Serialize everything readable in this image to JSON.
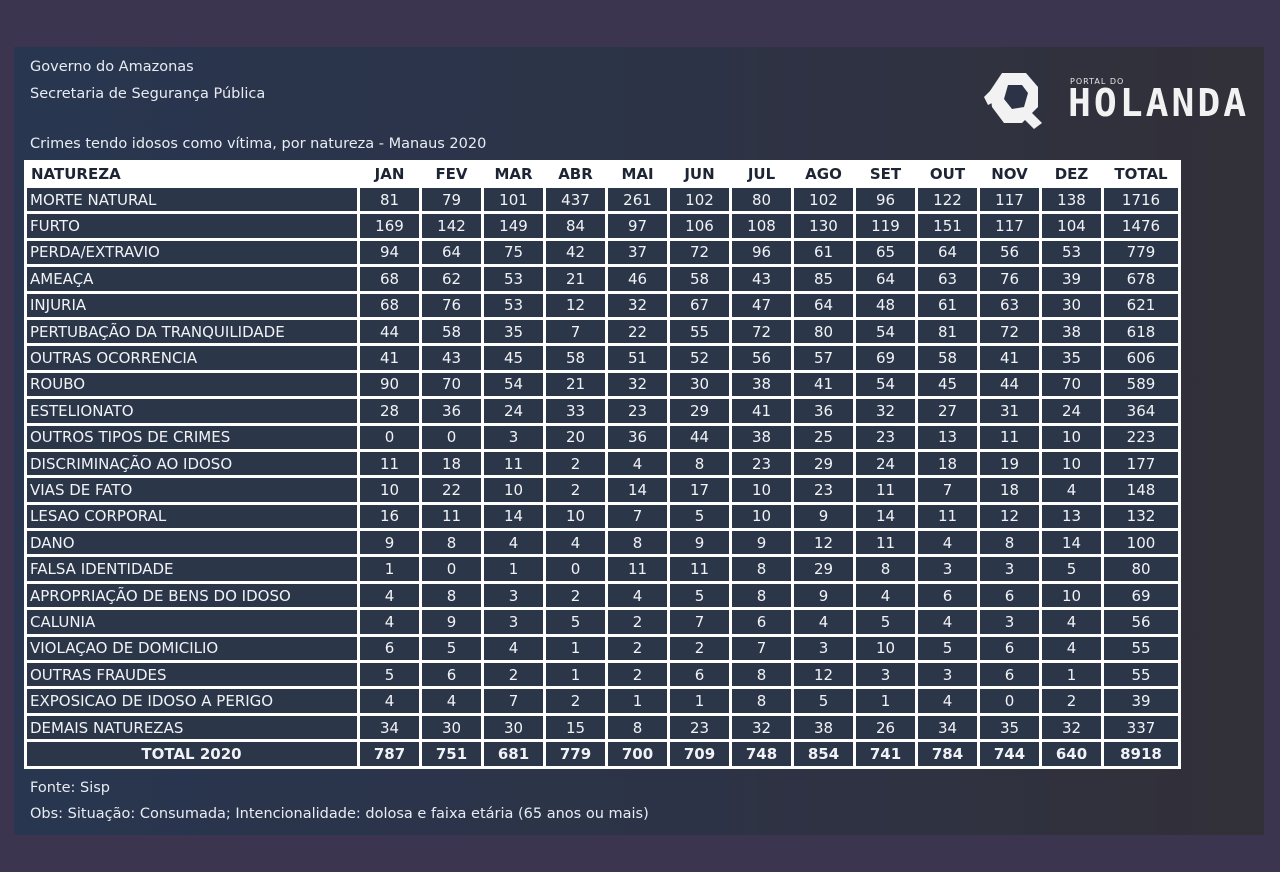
{
  "header": {
    "line1": "Governo do Amazonas",
    "line2": "Secretaria de Segurança Pública",
    "subtitle": "Crimes tendo idosos como vítima, por natureza - Manaus 2020"
  },
  "logo": {
    "small": "PORTAL DO",
    "big": "HOLANDA"
  },
  "table": {
    "columns": [
      "NATUREZA",
      "JAN",
      "FEV",
      "MAR",
      "ABR",
      "MAI",
      "JUN",
      "JUL",
      "AGO",
      "SET",
      "OUT",
      "NOV",
      "DEZ",
      "TOTAL"
    ],
    "rows": [
      [
        "MORTE NATURAL",
        "81",
        "79",
        "101",
        "437",
        "261",
        "102",
        "80",
        "102",
        "96",
        "122",
        "117",
        "138",
        "1716"
      ],
      [
        "FURTO",
        "169",
        "142",
        "149",
        "84",
        "97",
        "106",
        "108",
        "130",
        "119",
        "151",
        "117",
        "104",
        "1476"
      ],
      [
        "PERDA/EXTRAVIO",
        "94",
        "64",
        "75",
        "42",
        "37",
        "72",
        "96",
        "61",
        "65",
        "64",
        "56",
        "53",
        "779"
      ],
      [
        "AMEAÇA",
        "68",
        "62",
        "53",
        "21",
        "46",
        "58",
        "43",
        "85",
        "64",
        "63",
        "76",
        "39",
        "678"
      ],
      [
        "INJURIA",
        "68",
        "76",
        "53",
        "12",
        "32",
        "67",
        "47",
        "64",
        "48",
        "61",
        "63",
        "30",
        "621"
      ],
      [
        "PERTUBAÇÃO DA TRANQUILIDADE",
        "44",
        "58",
        "35",
        "7",
        "22",
        "55",
        "72",
        "80",
        "54",
        "81",
        "72",
        "38",
        "618"
      ],
      [
        "OUTRAS OCORRENCIA",
        "41",
        "43",
        "45",
        "58",
        "51",
        "52",
        "56",
        "57",
        "69",
        "58",
        "41",
        "35",
        "606"
      ],
      [
        "ROUBO",
        "90",
        "70",
        "54",
        "21",
        "32",
        "30",
        "38",
        "41",
        "54",
        "45",
        "44",
        "70",
        "589"
      ],
      [
        "ESTELIONATO",
        "28",
        "36",
        "24",
        "33",
        "23",
        "29",
        "41",
        "36",
        "32",
        "27",
        "31",
        "24",
        "364"
      ],
      [
        "OUTROS TIPOS DE CRIMES",
        "0",
        "0",
        "3",
        "20",
        "36",
        "44",
        "38",
        "25",
        "23",
        "13",
        "11",
        "10",
        "223"
      ],
      [
        "DISCRIMINAÇÃO AO IDOSO",
        "11",
        "18",
        "11",
        "2",
        "4",
        "8",
        "23",
        "29",
        "24",
        "18",
        "19",
        "10",
        "177"
      ],
      [
        "VIAS DE FATO",
        "10",
        "22",
        "10",
        "2",
        "14",
        "17",
        "10",
        "23",
        "11",
        "7",
        "18",
        "4",
        "148"
      ],
      [
        "LESAO CORPORAL",
        "16",
        "11",
        "14",
        "10",
        "7",
        "5",
        "10",
        "9",
        "14",
        "11",
        "12",
        "13",
        "132"
      ],
      [
        "DANO",
        "9",
        "8",
        "4",
        "4",
        "8",
        "9",
        "9",
        "12",
        "11",
        "4",
        "8",
        "14",
        "100"
      ],
      [
        "FALSA IDENTIDADE",
        "1",
        "0",
        "1",
        "0",
        "11",
        "11",
        "8",
        "29",
        "8",
        "3",
        "3",
        "5",
        "80"
      ],
      [
        "APROPRIAÇÃO DE BENS DO IDOSO",
        "4",
        "8",
        "3",
        "2",
        "4",
        "5",
        "8",
        "9",
        "4",
        "6",
        "6",
        "10",
        "69"
      ],
      [
        "CALUNIA",
        "4",
        "9",
        "3",
        "5",
        "2",
        "7",
        "6",
        "4",
        "5",
        "4",
        "3",
        "4",
        "56"
      ],
      [
        "VIOLAÇAO DE DOMICILIO",
        "6",
        "5",
        "4",
        "1",
        "2",
        "2",
        "7",
        "3",
        "10",
        "5",
        "6",
        "4",
        "55"
      ],
      [
        "OUTRAS FRAUDES",
        "5",
        "6",
        "2",
        "1",
        "2",
        "6",
        "8",
        "12",
        "3",
        "3",
        "6",
        "1",
        "55"
      ],
      [
        "EXPOSICAO DE IDOSO A PERIGO",
        "4",
        "4",
        "7",
        "2",
        "1",
        "1",
        "8",
        "5",
        "1",
        "4",
        "0",
        "2",
        "39"
      ],
      [
        "DEMAIS NATUREZAS",
        "34",
        "30",
        "30",
        "15",
        "8",
        "23",
        "32",
        "38",
        "26",
        "34",
        "35",
        "32",
        "337"
      ]
    ],
    "total_row": [
      "TOTAL 2020",
      "787",
      "751",
      "681",
      "779",
      "700",
      "709",
      "748",
      "854",
      "741",
      "784",
      "744",
      "640",
      "8918"
    ]
  },
  "footer": {
    "source": "Fonte: Sisp",
    "note": "Obs: Situação: Consumada; Intencionalidade: dolosa e faixa etária (65 anos ou mais)"
  }
}
